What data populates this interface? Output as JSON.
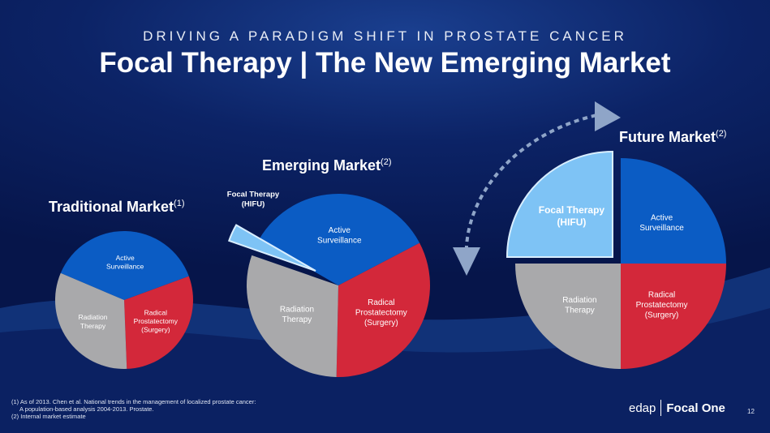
{
  "header": {
    "subtitle": "DRIVING A PARADIGM SHIFT IN PROSTATE CANCER",
    "title": "Focal Therapy | The New Emerging Market"
  },
  "colors": {
    "blue": "#0b5cc4",
    "red": "#d3283a",
    "gray": "#a9a9ab",
    "focal": "#7ec3f5"
  },
  "chart_data": [
    {
      "type": "pie",
      "title": "Traditional Market",
      "note": "(1)",
      "slices": [
        {
          "label": "Active Surveillance",
          "value": 38,
          "color": "#0b5cc4"
        },
        {
          "label": "Radical Prostatectomy (Surgery)",
          "value": 30,
          "color": "#d3283a"
        },
        {
          "label": "Radiation Therapy",
          "value": 32,
          "color": "#a9a9ab"
        }
      ]
    },
    {
      "type": "pie",
      "title": "Emerging Market",
      "note": "(2)",
      "slices": [
        {
          "label": "Active Surveillance",
          "value": 34,
          "color": "#0b5cc4"
        },
        {
          "label": "Radical Prostatectomy (Surgery)",
          "value": 33,
          "color": "#d3283a"
        },
        {
          "label": "Radiation Therapy",
          "value": 30,
          "color": "#a9a9ab"
        },
        {
          "label": "Focal Therapy (HIFU)",
          "value": 3,
          "color": "#7ec3f5"
        }
      ]
    },
    {
      "type": "pie",
      "title": "Future Market",
      "note": "(2)",
      "slices": [
        {
          "label": "Active Surveillance",
          "value": 25,
          "color": "#0b5cc4"
        },
        {
          "label": "Radical Prostatectomy (Surgery)",
          "value": 25,
          "color": "#d3283a"
        },
        {
          "label": "Radiation Therapy",
          "value": 25,
          "color": "#a9a9ab"
        },
        {
          "label": "Focal Therapy (HIFU)",
          "value": 25,
          "color": "#7ec3f5"
        }
      ]
    }
  ],
  "footnotes": [
    "(1) As of 2013. Chen et al. National trends in the management of localized prostate cancer:",
    "A population-based analysis 2004-2013. Prostate.",
    "(2) Internal market estimate"
  ],
  "logo": {
    "left": "edap",
    "right": "Focal One"
  },
  "page_number": "12"
}
